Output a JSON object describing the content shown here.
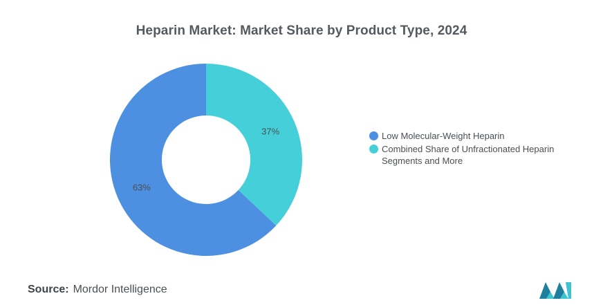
{
  "chart_data": {
    "type": "pie",
    "title": "Heparin Market: Market Share by Product Type, 2024",
    "series": [
      {
        "name": "Low Molecular-Weight Heparin",
        "value": 63,
        "label": "63%",
        "color": "#4d8fe0"
      },
      {
        "name": "Combined Share of Unfractionated Heparin Segments and More",
        "value": 37,
        "label": "37%",
        "color": "#45d0d9"
      }
    ],
    "legend_position": "right"
  },
  "source": {
    "label": "Source:",
    "text": "Mordor Intelligence"
  },
  "logo": {
    "icon": "mordor-intelligence-logo",
    "colors": [
      "#1f7f9f",
      "#3cc4d0"
    ]
  }
}
